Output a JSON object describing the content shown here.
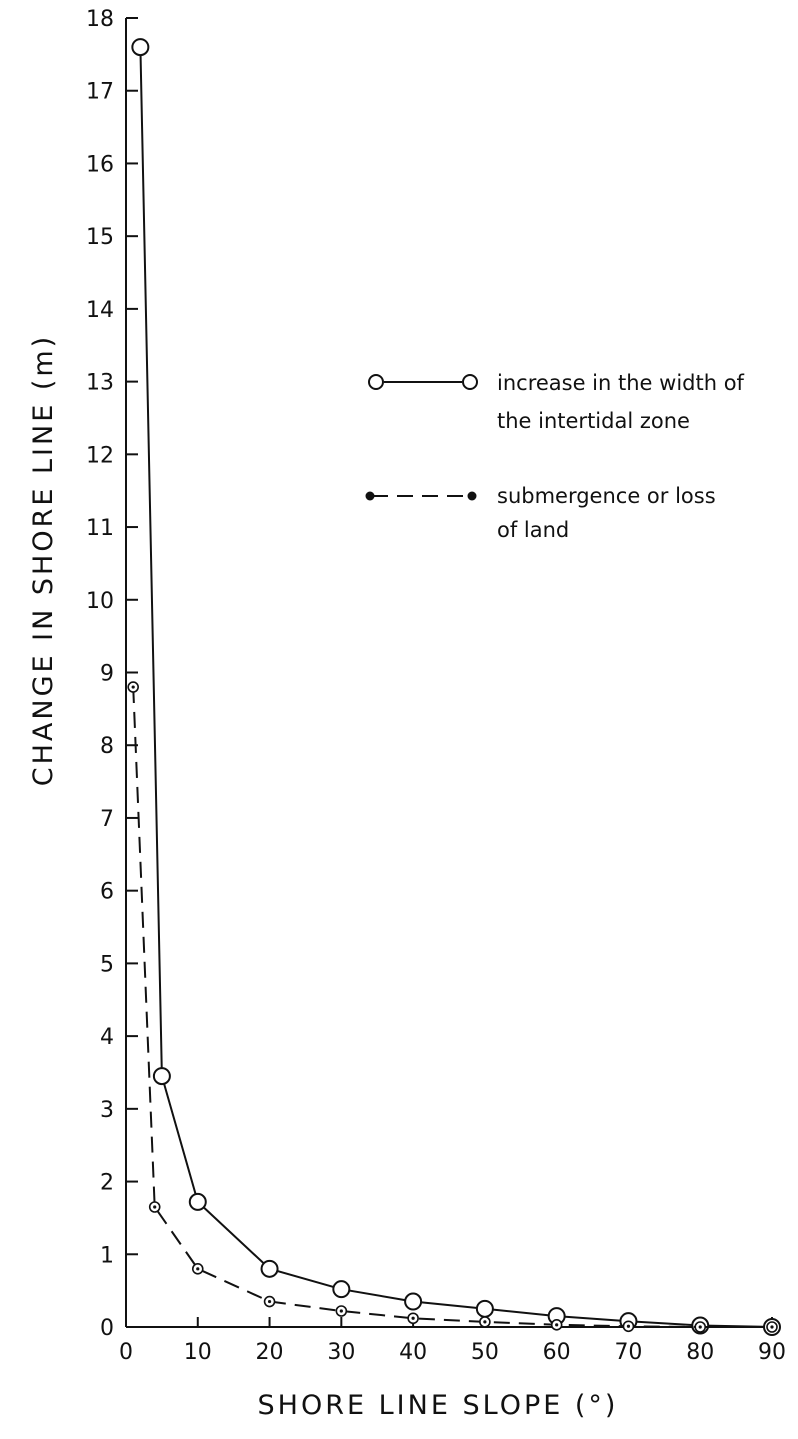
{
  "chart_data": {
    "type": "line",
    "title": "",
    "xlabel": "SHORE LINE SLOPE (°)",
    "ylabel": "CHANGE IN SHORE LINE (m)",
    "xlim": [
      0,
      90
    ],
    "ylim": [
      0,
      18
    ],
    "x_ticks": [
      0,
      10,
      20,
      30,
      40,
      50,
      60,
      70,
      80,
      90
    ],
    "y_ticks": [
      0,
      1,
      2,
      3,
      4,
      5,
      6,
      7,
      8,
      9,
      10,
      11,
      12,
      13,
      14,
      15,
      16,
      17,
      18
    ],
    "grid": false,
    "legend_position": "right",
    "series": [
      {
        "name": "increase in the width of the intertidal zone",
        "line_style": "solid",
        "marker": "open-circle",
        "x": [
          2,
          5,
          10,
          20,
          30,
          40,
          50,
          60,
          70,
          80,
          90
        ],
        "y": [
          17.6,
          3.45,
          1.72,
          0.8,
          0.52,
          0.35,
          0.25,
          0.15,
          0.08,
          0.02,
          0.0
        ]
      },
      {
        "name": "submergence or loss of land",
        "line_style": "dashed",
        "marker": "small-dotted-circle",
        "x": [
          1,
          4,
          10,
          20,
          30,
          40,
          50,
          60,
          70,
          80,
          90
        ],
        "y": [
          8.8,
          1.65,
          0.8,
          0.35,
          0.22,
          0.12,
          0.07,
          0.03,
          0.01,
          0.0,
          0.0
        ]
      }
    ],
    "legend": {
      "solid_line1": "increase in the width of",
      "solid_line2": "the intertidal zone",
      "dashed_line1": "submergence or loss",
      "dashed_line2": "of land"
    }
  }
}
